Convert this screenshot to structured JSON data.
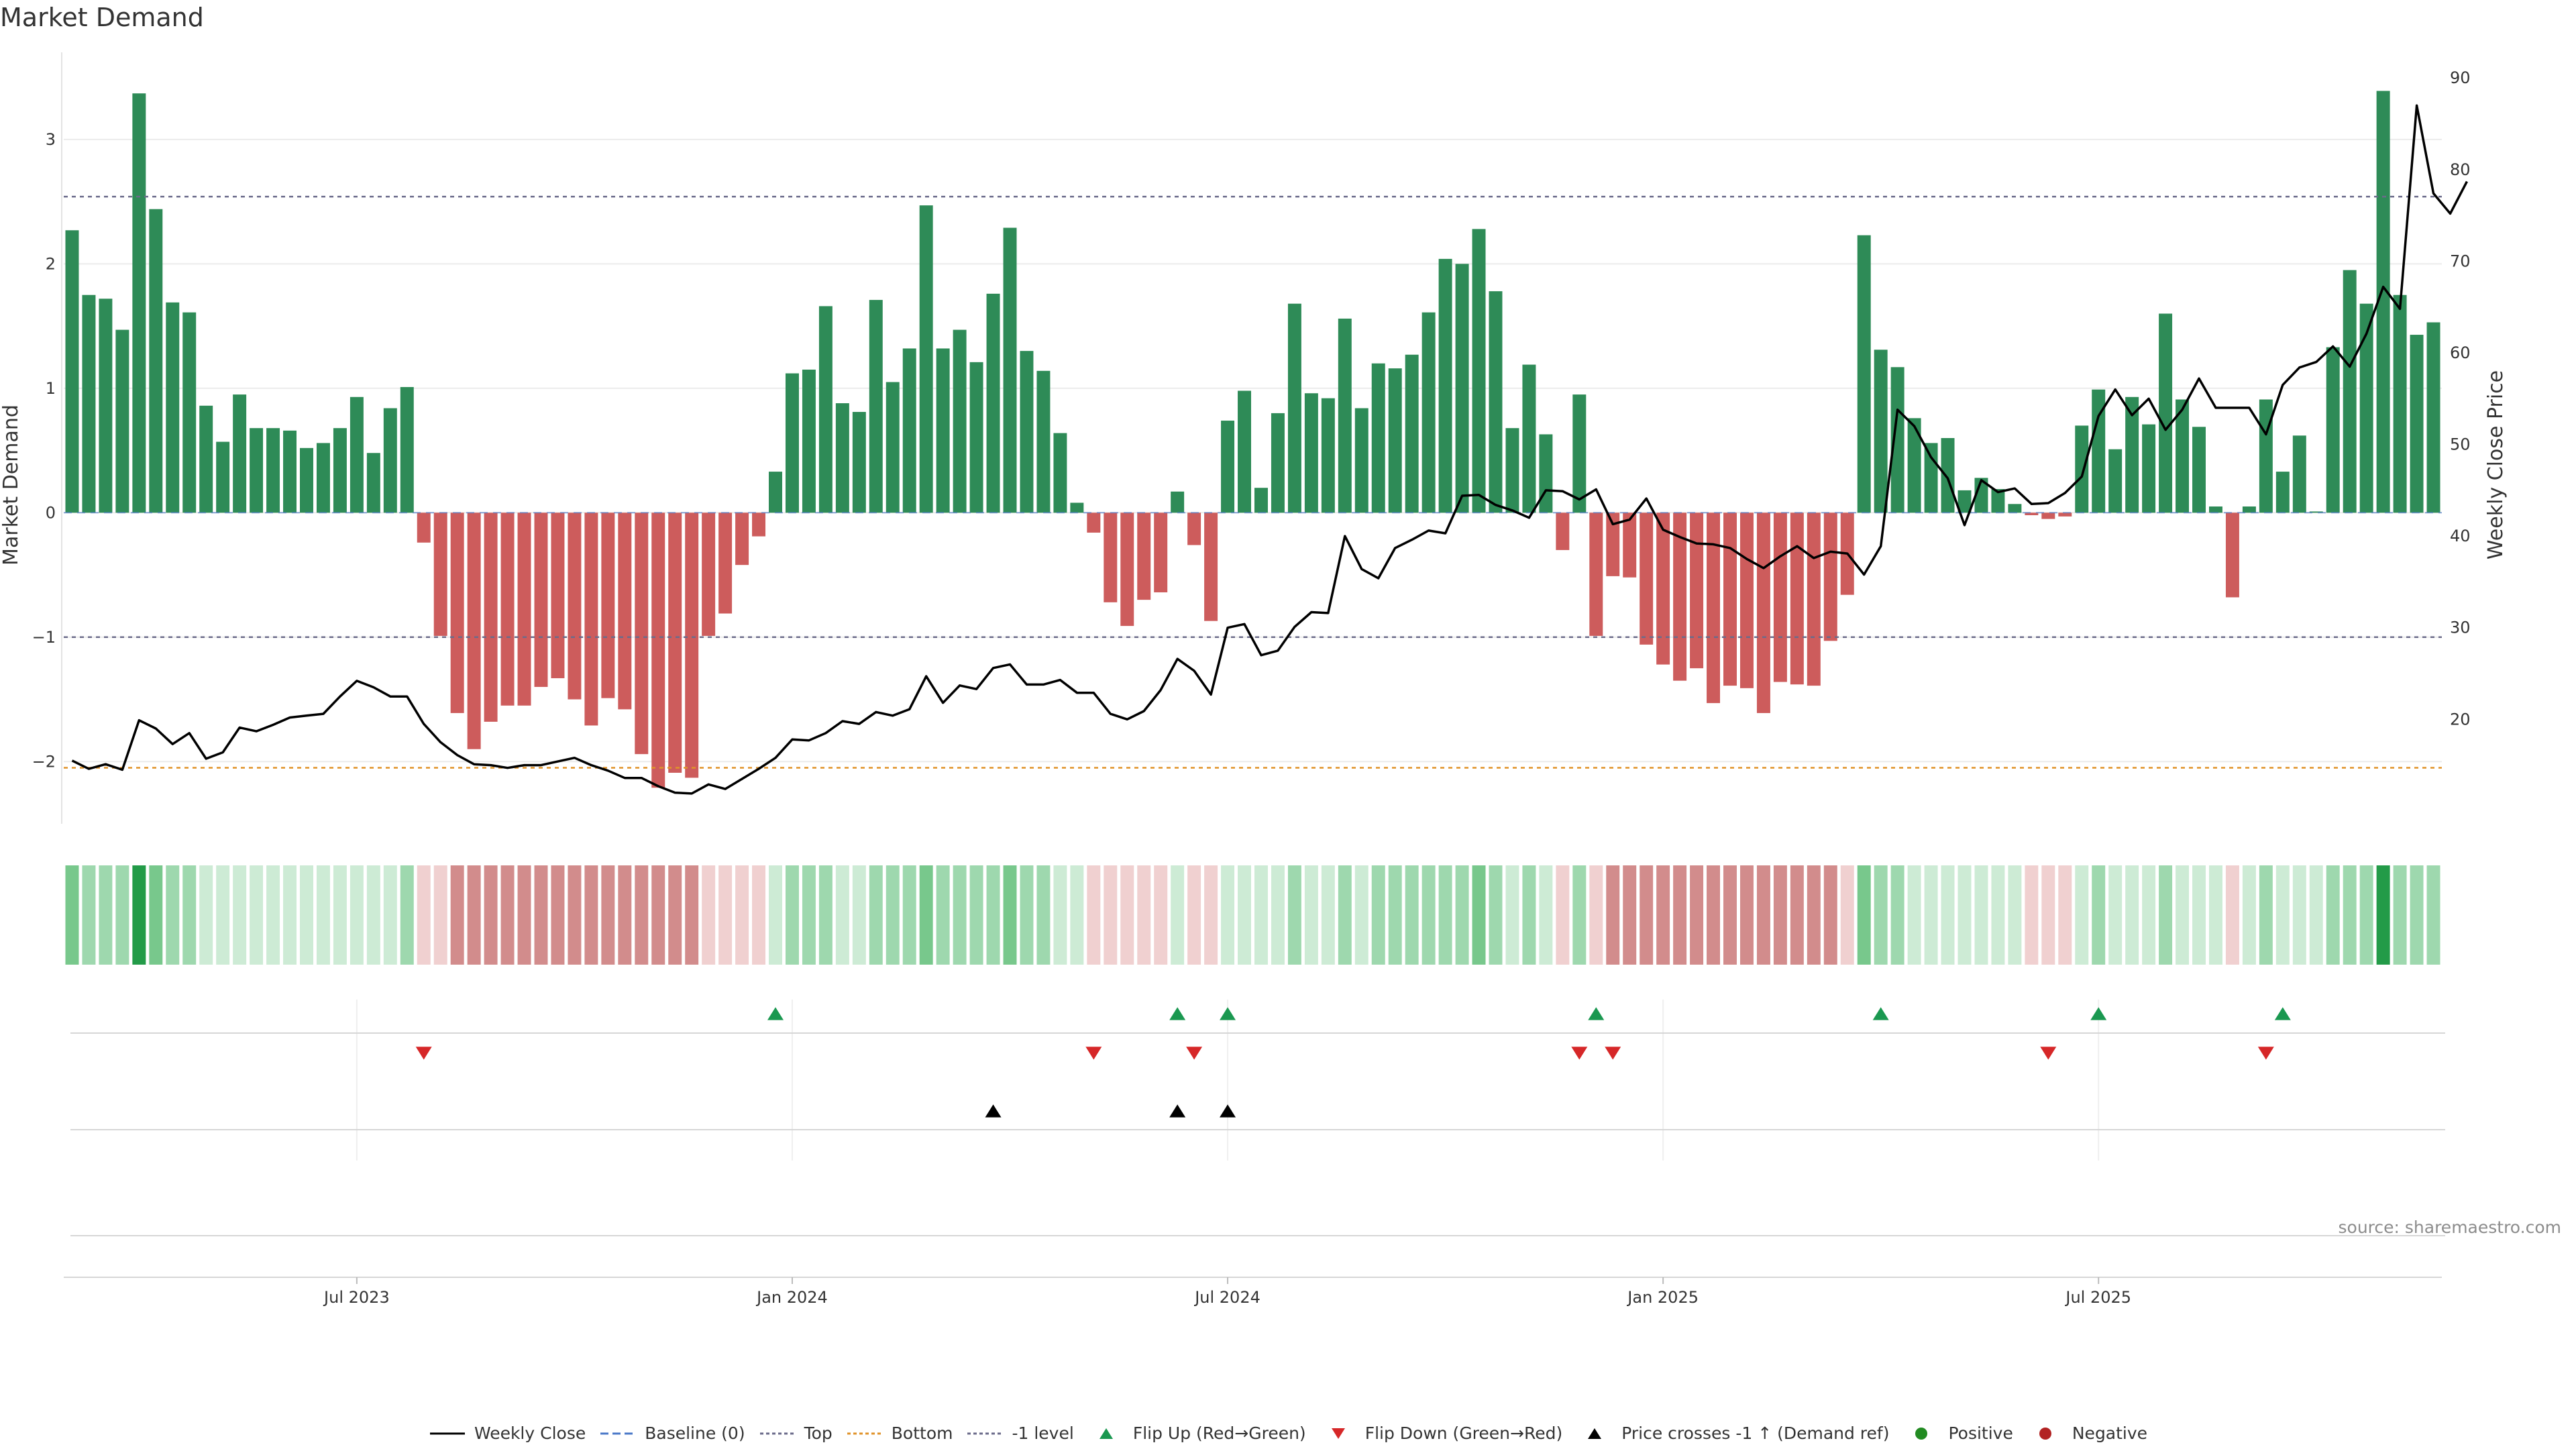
{
  "title": "Market Demand",
  "source": "source: sharemaestro.com",
  "colors": {
    "positive_bar": "#2e8b57",
    "negative_bar": "#cd5c5c",
    "price_line": "#000000",
    "top_line": "#6b6b8a",
    "bottom_line": "#e0932a",
    "minus1_line": "#6b6b8a",
    "flip_up": "#1a9850",
    "flip_down": "#d62728",
    "cross": "#000000",
    "grid": "#ebebeb",
    "heat_positive_strong": "#239b48",
    "heat_positive": "#78c88c",
    "heat_positive_weak": "#cdebd5",
    "heat_negative": "#d28c8c",
    "heat_negative_weak": "#f0d0d0"
  },
  "legend": [
    {
      "label": "Weekly Close",
      "marker": "line",
      "color": "#000000"
    },
    {
      "label": "Baseline (0)",
      "marker": "dashed",
      "color": "#4a78c8"
    },
    {
      "label": "Top",
      "marker": "dotted",
      "color": "#6b6b8a"
    },
    {
      "label": "Bottom",
      "marker": "dotted",
      "color": "#e0932a"
    },
    {
      "label": "-1 level",
      "marker": "dotted",
      "color": "#6b6b8a"
    },
    {
      "label": "Flip Up (Red→Green)",
      "marker": "triangle-up",
      "color": "#1a9850"
    },
    {
      "label": "Flip Down (Green→Red)",
      "marker": "triangle-down",
      "color": "#d62728"
    },
    {
      "label": "Price crosses -1 ↑ (Demand ref)",
      "marker": "triangle-up",
      "color": "#000000"
    },
    {
      "label": "Positive",
      "marker": "circle",
      "color": "#228b22"
    },
    {
      "label": "Negative",
      "marker": "circle",
      "color": "#b22222"
    }
  ],
  "chart_data": {
    "type": "bar",
    "title": "Market Demand",
    "ylabel": "Market Demand",
    "y2label": "Weekly Close Price",
    "ylim": [
      -2.5,
      3.7
    ],
    "y2lim": [
      8.6,
      92.8
    ],
    "yticks": [
      3,
      2,
      1,
      0,
      -1,
      -2
    ],
    "ytick_labels": [
      "3",
      "2",
      "1",
      "0",
      "−1",
      "−2"
    ],
    "y2ticks": [
      90,
      80,
      70,
      60,
      50,
      40,
      30,
      20
    ],
    "y2tick_labels": [
      "90",
      "80",
      "70",
      "60",
      "50",
      "40",
      "30",
      "20"
    ],
    "x_start": "2023-03-05",
    "x_step_weeks": 1,
    "x_ticks": [
      {
        "week": 17,
        "label": "Jul 2023"
      },
      {
        "week": 43,
        "label": "Jan 2024"
      },
      {
        "week": 69,
        "label": "Jul 2024"
      },
      {
        "week": 95,
        "label": "Jan 2025"
      },
      {
        "week": 121,
        "label": "Jul 2025"
      }
    ],
    "reference_lines": {
      "top": 2.54,
      "bottom": -2.05,
      "minus_one": -1,
      "baseline": 0
    },
    "demand": [
      2.27,
      1.75,
      1.72,
      1.47,
      3.37,
      2.44,
      1.69,
      1.61,
      0.86,
      0.57,
      0.95,
      0.68,
      0.68,
      0.66,
      0.52,
      0.56,
      0.68,
      0.93,
      0.48,
      0.84,
      1.01,
      -0.24,
      -0.99,
      -1.61,
      -1.9,
      -1.68,
      -1.55,
      -1.55,
      -1.4,
      -1.33,
      -1.5,
      -1.71,
      -1.49,
      -1.58,
      -1.94,
      -2.21,
      -2.09,
      -2.13,
      -0.99,
      -0.81,
      -0.42,
      -0.19,
      0.33,
      1.12,
      1.15,
      1.66,
      0.88,
      0.81,
      1.71,
      1.05,
      1.32,
      2.47,
      1.32,
      1.47,
      1.21,
      1.76,
      2.29,
      1.3,
      1.14,
      0.64,
      0.08,
      -0.16,
      -0.72,
      -0.91,
      -0.7,
      -0.64,
      0.17,
      -0.26,
      -0.87,
      0.74,
      0.98,
      0.2,
      0.8,
      1.68,
      0.96,
      0.92,
      1.56,
      0.84,
      1.2,
      1.16,
      1.27,
      1.61,
      2.04,
      2.0,
      2.28,
      1.78,
      0.68,
      1.19,
      0.63,
      -0.3,
      0.95,
      -0.99,
      -0.51,
      -0.52,
      -1.06,
      -1.22,
      -1.35,
      -1.25,
      -1.53,
      -1.39,
      -1.41,
      -1.61,
      -1.36,
      -1.38,
      -1.39,
      -1.03,
      -0.66,
      2.23,
      1.31,
      1.17,
      0.76,
      0.56,
      0.6,
      0.18,
      0.28,
      0.19,
      0.07,
      -0.02,
      -0.05,
      -0.03,
      0.7,
      0.99,
      0.51,
      0.93,
      0.71,
      1.6,
      0.91,
      0.69,
      0.05,
      -0.68,
      0.05,
      0.91,
      0.33,
      0.62,
      0.01,
      1.33,
      1.95,
      1.68,
      3.39,
      1.75,
      1.43,
      1.53
    ],
    "heat_levels": [
      2,
      1,
      1,
      1,
      3,
      2,
      1,
      1,
      0,
      0,
      0,
      0,
      0,
      0,
      0,
      0,
      0,
      0,
      0,
      0,
      1,
      -1,
      -1,
      -2,
      -2,
      -2,
      -2,
      -2,
      -2,
      -2,
      -2,
      -2,
      -2,
      -2,
      -2,
      -2,
      -2,
      -2,
      -1,
      -1,
      -1,
      -1,
      0,
      1,
      1,
      1,
      0,
      0,
      1,
      1,
      1,
      2,
      1,
      1,
      1,
      1,
      2,
      1,
      1,
      0,
      0,
      -1,
      -1,
      -1,
      -1,
      -1,
      0,
      -1,
      -1,
      0,
      0,
      0,
      0,
      1,
      0,
      0,
      1,
      0,
      1,
      1,
      1,
      1,
      1,
      1,
      2,
      1,
      0,
      1,
      0,
      -1,
      1,
      -1,
      -2,
      -2,
      -2,
      -2,
      -2,
      -2,
      -2,
      -2,
      -2,
      -2,
      -2,
      -2,
      -2,
      -2,
      -1,
      2,
      1,
      1,
      0,
      0,
      0,
      0,
      0,
      0,
      0,
      -1,
      -1,
      -1,
      0,
      1,
      0,
      0,
      0,
      1,
      0,
      0,
      0,
      -1,
      0,
      1,
      0,
      0,
      0,
      1,
      1,
      1,
      3,
      1,
      1,
      1
    ],
    "price": [
      15.5,
      14.6,
      15.1,
      14.5,
      19.9,
      19.0,
      17.3,
      18.5,
      15.7,
      16.4,
      19.1,
      18.7,
      19.4,
      20.2,
      20.4,
      20.6,
      22.5,
      24.2,
      23.5,
      22.5,
      22.5,
      19.5,
      17.5,
      16.1,
      15.1,
      15.0,
      14.7,
      15.0,
      15.0,
      15.4,
      15.8,
      15.0,
      14.4,
      13.6,
      13.6,
      12.7,
      12.0,
      11.9,
      12.9,
      12.4,
      13.5,
      14.6,
      15.8,
      17.8,
      17.7,
      18.5,
      19.8,
      19.5,
      20.8,
      20.4,
      21.1,
      24.7,
      21.8,
      23.7,
      23.3,
      25.6,
      26.0,
      23.8,
      23.8,
      24.3,
      22.9,
      22.9,
      20.6,
      20.0,
      20.9,
      23.2,
      26.6,
      25.3,
      22.7,
      30.0,
      30.4,
      27.0,
      27.5,
      30.1,
      31.7,
      31.6,
      40.0,
      36.4,
      35.4,
      38.7,
      39.6,
      40.6,
      40.3,
      44.4,
      44.5,
      43.4,
      42.8,
      42.0,
      45.0,
      44.9,
      44.0,
      45.1,
      41.3,
      41.8,
      44.1,
      40.7,
      39.9,
      39.2,
      39.1,
      38.7,
      37.5,
      36.5,
      37.8,
      38.9,
      37.6,
      38.3,
      38.1,
      35.8,
      38.9,
      53.8,
      52.0,
      48.6,
      46.3,
      41.2,
      46.1,
      44.8,
      45.2,
      43.5,
      43.6,
      44.7,
      46.5,
      53.1,
      56.0,
      53.2,
      55.0,
      51.6,
      53.8,
      57.2,
      54.0,
      54.0,
      54.0,
      51.1,
      56.5,
      58.4,
      59.0,
      60.7,
      58.5,
      62.1,
      67.2,
      64.8,
      87.0,
      77.4,
      75.2,
      78.7
    ],
    "flip_up_weeks": [
      42,
      66,
      69,
      91,
      108,
      121,
      132
    ],
    "flip_down_weeks": [
      21,
      61,
      67,
      90,
      92,
      118,
      131
    ],
    "price_cross_weeks": [
      55,
      66,
      69
    ]
  }
}
